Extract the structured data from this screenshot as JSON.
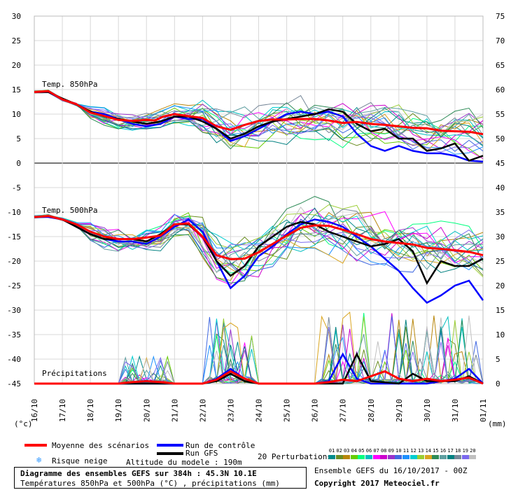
{
  "chart_data": {
    "type": "line",
    "dates": [
      "16/10",
      "17/10",
      "18/10",
      "19/10",
      "20/10",
      "21/10",
      "22/10",
      "23/10",
      "24/10",
      "25/10",
      "26/10",
      "27/10",
      "28/10",
      "29/10",
      "30/10",
      "31/10",
      "01/11"
    ],
    "left_axis": {
      "label": "(°c)",
      "ticks": [
        30,
        25,
        20,
        15,
        10,
        5,
        0,
        -5,
        -10,
        -15,
        -20,
        -25,
        -30,
        -35,
        -40,
        -45
      ],
      "range": [
        -45,
        30
      ]
    },
    "right_axis": {
      "label": "(mm)",
      "ticks": [
        75,
        70,
        65,
        60,
        55,
        50,
        45,
        40,
        35,
        30,
        25,
        20,
        15,
        10,
        5,
        0
      ]
    },
    "panels": {
      "t850": {
        "label": "Temp. 850hPa",
        "mean": [
          [
            0,
            14.5
          ],
          [
            0.5,
            14.7
          ],
          [
            1,
            13
          ],
          [
            1.5,
            12
          ],
          [
            2,
            10.3
          ],
          [
            2.5,
            9.6
          ],
          [
            3,
            8.8
          ],
          [
            3.5,
            8.6
          ],
          [
            4,
            8.8
          ],
          [
            4.3,
            8.7
          ],
          [
            4.6,
            9.5
          ],
          [
            5,
            10
          ],
          [
            5.5,
            9.6
          ],
          [
            6,
            9.2
          ],
          [
            6.5,
            7.5
          ],
          [
            7,
            6.8
          ],
          [
            7.5,
            7.8
          ],
          [
            8,
            8.6
          ],
          [
            8.5,
            8.9
          ],
          [
            9,
            8.9
          ],
          [
            9.5,
            9
          ],
          [
            10,
            9
          ],
          [
            10.5,
            8.7
          ],
          [
            11,
            8.2
          ],
          [
            11.5,
            8.4
          ],
          [
            12,
            8
          ],
          [
            12.5,
            7.8
          ],
          [
            13,
            7.5
          ],
          [
            13.5,
            7.2
          ],
          [
            14,
            7.1
          ],
          [
            14.5,
            6.6
          ],
          [
            15,
            6.5
          ],
          [
            15.5,
            6.4
          ],
          [
            16,
            5.9
          ]
        ],
        "control": [
          [
            0,
            14.5
          ],
          [
            0.5,
            14.5
          ],
          [
            1,
            13
          ],
          [
            1.5,
            12
          ],
          [
            2,
            10.5
          ],
          [
            2.5,
            10
          ],
          [
            3,
            9
          ],
          [
            3.5,
            8
          ],
          [
            4,
            7.5
          ],
          [
            4.5,
            8
          ],
          [
            5,
            9.5
          ],
          [
            5.5,
            9
          ],
          [
            6,
            9
          ],
          [
            6.5,
            7
          ],
          [
            7,
            4.5
          ],
          [
            7.5,
            5.5
          ],
          [
            8,
            7
          ],
          [
            8.5,
            8.5
          ],
          [
            9,
            10
          ],
          [
            9.5,
            10.5
          ],
          [
            10,
            10
          ],
          [
            10.5,
            10.5
          ],
          [
            11,
            9.5
          ],
          [
            11.5,
            6
          ],
          [
            12,
            3.5
          ],
          [
            12.5,
            2.5
          ],
          [
            13,
            3.5
          ],
          [
            13.5,
            2.5
          ],
          [
            14,
            2
          ],
          [
            14.5,
            2
          ],
          [
            15,
            1.5
          ],
          [
            15.5,
            0.5
          ],
          [
            16,
            0.3
          ]
        ],
        "gfs": [
          [
            0,
            14.5
          ],
          [
            0.5,
            14.5
          ],
          [
            1,
            13.2
          ],
          [
            1.5,
            12
          ],
          [
            2,
            10.5
          ],
          [
            2.5,
            9.5
          ],
          [
            3,
            9
          ],
          [
            3.5,
            8.5
          ],
          [
            4,
            8
          ],
          [
            4.5,
            8.5
          ],
          [
            5,
            9.5
          ],
          [
            5.5,
            9.5
          ],
          [
            6,
            8.5
          ],
          [
            6.5,
            7
          ],
          [
            7,
            5
          ],
          [
            7.5,
            6
          ],
          [
            8,
            7.5
          ],
          [
            8.5,
            8.5
          ],
          [
            9,
            9
          ],
          [
            9.5,
            9.5
          ],
          [
            10,
            10
          ],
          [
            10.5,
            11
          ],
          [
            11,
            10.5
          ],
          [
            11.5,
            8
          ],
          [
            12,
            6.5
          ],
          [
            12.5,
            7
          ],
          [
            13,
            5
          ],
          [
            13.5,
            5
          ],
          [
            14,
            2.5
          ],
          [
            14.5,
            3
          ],
          [
            15,
            4
          ],
          [
            15.5,
            0.5
          ],
          [
            16,
            1.5
          ]
        ]
      },
      "t500": {
        "label": "Temp. 500hPa",
        "mean": [
          [
            0,
            -11
          ],
          [
            0.5,
            -10.8
          ],
          [
            1,
            -11.5
          ],
          [
            1.5,
            -12.5
          ],
          [
            2,
            -14
          ],
          [
            2.5,
            -15
          ],
          [
            3,
            -15.5
          ],
          [
            3.5,
            -15.5
          ],
          [
            4,
            -15.2
          ],
          [
            4.5,
            -14.8
          ],
          [
            5,
            -12.5
          ],
          [
            5.5,
            -12.3
          ],
          [
            6,
            -15
          ],
          [
            6.5,
            -18.8
          ],
          [
            7,
            -19.6
          ],
          [
            7.5,
            -19.5
          ],
          [
            8,
            -18.2
          ],
          [
            8.5,
            -16.5
          ],
          [
            9,
            -14.8
          ],
          [
            9.5,
            -13.2
          ],
          [
            10,
            -12.7
          ],
          [
            10.5,
            -12.8
          ],
          [
            11,
            -13.6
          ],
          [
            11.5,
            -14.5
          ],
          [
            12,
            -15.5
          ],
          [
            12.5,
            -16
          ],
          [
            13,
            -16.3
          ],
          [
            13.5,
            -16.6
          ],
          [
            14,
            -17.3
          ],
          [
            14.5,
            -17.5
          ],
          [
            15,
            -17.8
          ],
          [
            15.5,
            -18.1
          ],
          [
            16,
            -18.8
          ]
        ],
        "control": [
          [
            0,
            -11
          ],
          [
            0.5,
            -11
          ],
          [
            1,
            -11.5
          ],
          [
            1.5,
            -13
          ],
          [
            2,
            -14.5
          ],
          [
            2.5,
            -15.5
          ],
          [
            3,
            -16
          ],
          [
            3.5,
            -16
          ],
          [
            4,
            -16.5
          ],
          [
            4.5,
            -15
          ],
          [
            5,
            -13
          ],
          [
            5.5,
            -11.5
          ],
          [
            6,
            -14
          ],
          [
            6.5,
            -20
          ],
          [
            7,
            -25.5
          ],
          [
            7.5,
            -23
          ],
          [
            8,
            -19
          ],
          [
            8.5,
            -17
          ],
          [
            9,
            -14.5
          ],
          [
            9.5,
            -12.5
          ],
          [
            10,
            -11.5
          ],
          [
            10.5,
            -12
          ],
          [
            11,
            -13
          ],
          [
            11.5,
            -15
          ],
          [
            12,
            -17
          ],
          [
            12.5,
            -19.5
          ],
          [
            13,
            -22
          ],
          [
            13.5,
            -25.5
          ],
          [
            14,
            -28.5
          ],
          [
            14.5,
            -27
          ],
          [
            15,
            -25
          ],
          [
            15.5,
            -24
          ],
          [
            16,
            -28
          ]
        ],
        "gfs": [
          [
            0,
            -11
          ],
          [
            0.5,
            -10.8
          ],
          [
            1,
            -11.5
          ],
          [
            1.5,
            -13
          ],
          [
            2,
            -14.5
          ],
          [
            2.5,
            -15.5
          ],
          [
            3,
            -15.5
          ],
          [
            3.5,
            -15.5
          ],
          [
            4,
            -16
          ],
          [
            4.5,
            -14.5
          ],
          [
            5,
            -12.5
          ],
          [
            5.5,
            -12.5
          ],
          [
            6,
            -15
          ],
          [
            6.5,
            -20
          ],
          [
            7,
            -23
          ],
          [
            7.5,
            -21
          ],
          [
            8,
            -17
          ],
          [
            8.5,
            -15
          ],
          [
            9,
            -13
          ],
          [
            9.5,
            -12
          ],
          [
            10,
            -12.5
          ],
          [
            10.5,
            -14
          ],
          [
            11,
            -15
          ],
          [
            11.5,
            -16
          ],
          [
            12,
            -17
          ],
          [
            12.5,
            -16.5
          ],
          [
            13,
            -15.5
          ],
          [
            13.5,
            -18
          ],
          [
            14,
            -24.5
          ],
          [
            14.5,
            -20
          ],
          [
            15,
            -21
          ],
          [
            15.5,
            -21
          ],
          [
            16,
            -19.5
          ]
        ]
      },
      "precip": {
        "label": "Précipitations",
        "mean": [
          [
            0,
            0
          ],
          [
            3,
            0
          ],
          [
            3.5,
            0.3
          ],
          [
            4,
            0.5
          ],
          [
            4.5,
            0.3
          ],
          [
            5,
            0
          ],
          [
            6,
            0
          ],
          [
            6.5,
            0.8
          ],
          [
            7,
            2.5
          ],
          [
            7.5,
            1
          ],
          [
            8,
            0
          ],
          [
            9,
            0
          ],
          [
            10,
            0
          ],
          [
            10.5,
            0.3
          ],
          [
            11,
            0.8
          ],
          [
            11.5,
            0.5
          ],
          [
            12,
            1.5
          ],
          [
            12.5,
            2.5
          ],
          [
            13,
            1
          ],
          [
            13.5,
            0.5
          ],
          [
            14,
            1
          ],
          [
            14.5,
            0.5
          ],
          [
            15,
            0.8
          ],
          [
            15.5,
            1.2
          ],
          [
            16,
            0
          ]
        ],
        "control": [
          [
            0,
            0
          ],
          [
            6,
            0
          ],
          [
            6.5,
            1
          ],
          [
            7,
            3
          ],
          [
            7.5,
            1
          ],
          [
            8,
            0
          ],
          [
            10,
            0
          ],
          [
            10.5,
            0.5
          ],
          [
            11,
            6
          ],
          [
            11.5,
            1
          ],
          [
            12,
            0
          ],
          [
            14,
            0
          ],
          [
            14.5,
            0.5
          ],
          [
            15,
            1
          ],
          [
            15.5,
            3
          ],
          [
            16,
            0
          ]
        ],
        "gfs": [
          [
            0,
            0
          ],
          [
            6,
            0
          ],
          [
            6.5,
            0.5
          ],
          [
            7,
            2
          ],
          [
            7.5,
            0.5
          ],
          [
            8,
            0
          ],
          [
            11,
            0
          ],
          [
            11.5,
            6
          ],
          [
            12,
            0.5
          ],
          [
            13,
            0
          ],
          [
            13.5,
            2
          ],
          [
            14,
            0.5
          ],
          [
            15,
            0.5
          ],
          [
            15.5,
            1.5
          ],
          [
            16,
            0
          ]
        ]
      }
    },
    "legend": {
      "mean_label": "Moyenne des scénarios",
      "control_label": "Run de contrôle",
      "gfs_label": "Run GFS",
      "snow_label": "Risque neige",
      "altitude_label": "Altitude du modele : 190m",
      "perturbations_label": "20 Perturbations",
      "perturbation_numbers": [
        "01",
        "02",
        "03",
        "04",
        "05",
        "06",
        "07",
        "08",
        "09",
        "10",
        "11",
        "12",
        "13",
        "14",
        "15",
        "16",
        "17",
        "18",
        "19",
        "20"
      ],
      "colors": {
        "mean": "#ff0000",
        "control": "#0000ff",
        "gfs": "#000000"
      },
      "perturbation_colors": [
        "#008b8b",
        "#6b8e23",
        "#b8860b",
        "#66cc00",
        "#00ff7f",
        "#00bfbf",
        "#ff00ff",
        "#cc00cc",
        "#9932cc",
        "#4169e1",
        "#1e90ff",
        "#00ced1",
        "#9acd32",
        "#daa520",
        "#2e8b57",
        "#5f9ea0",
        "#008080",
        "#778899",
        "#7b68ee",
        "#c0c0c0"
      ]
    }
  },
  "footer": {
    "title_line1": "Diagramme des ensembles GEFS sur 384h : 45.3N 10.1E",
    "title_line2": "Températures 850hPa et 500hPa (°C) , précipitations (mm)",
    "ensemble_info": "Ensemble GEFS du 16/10/2017 - 00Z",
    "copyright": "Copyright 2017 Meteociel.fr"
  }
}
